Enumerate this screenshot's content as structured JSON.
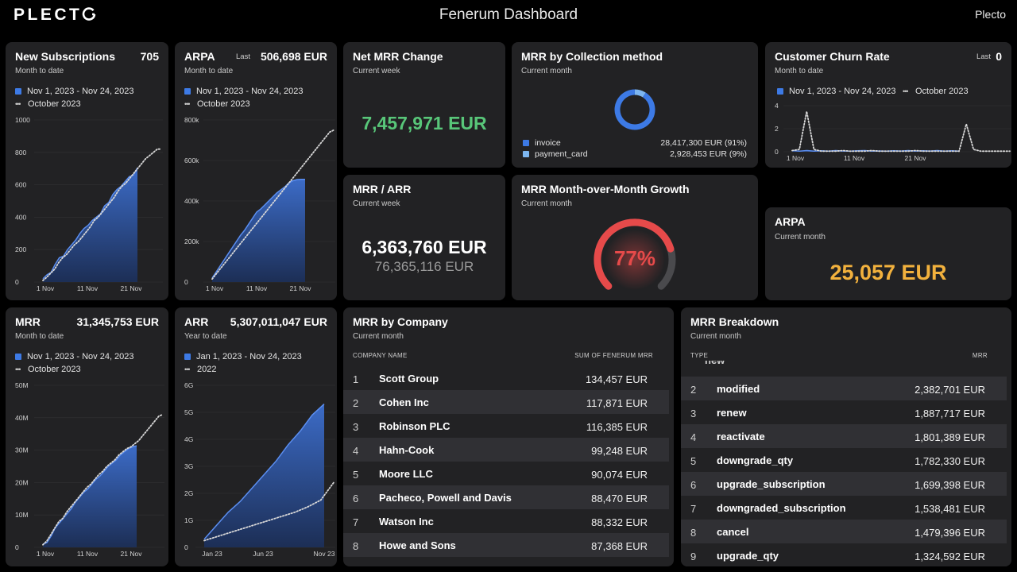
{
  "header": {
    "logo": "PLECTO",
    "title": "Fenerum Dashboard",
    "brand": "Plecto"
  },
  "colors": {
    "accent_blue": "#3d7ae5",
    "light_blue": "#7db6f0",
    "green": "#58c679",
    "orange": "#f2b13d",
    "red": "#e64a4a"
  },
  "new_subscriptions": {
    "title": "New Subscriptions",
    "value": "705",
    "subtitle": "Month to date",
    "legend_current": "Nov 1, 2023 - Nov 24, 2023",
    "legend_previous": "October 2023"
  },
  "arpa_mtd": {
    "title": "ARPA",
    "last_label": "Last",
    "value": "506,698 EUR",
    "subtitle": "Month to date",
    "legend_current": "Nov 1, 2023 - Nov 24, 2023",
    "legend_previous": "October 2023"
  },
  "net_mrr_change": {
    "title": "Net MRR Change",
    "subtitle": "Current week",
    "value": "7,457,971 EUR"
  },
  "mrr_collection": {
    "title": "MRR by Collection method",
    "subtitle": "Current month",
    "items": [
      {
        "label": "invoice",
        "amount": "28,417,300 EUR (91%)",
        "share": 0.91
      },
      {
        "label": "payment_card",
        "amount": "2,928,453 EUR (9%)",
        "share": 0.09
      }
    ]
  },
  "churn": {
    "title": "Customer Churn Rate",
    "last_label": "Last",
    "value": "0",
    "subtitle": "Month to date",
    "legend_current": "Nov 1, 2023 - Nov 24, 2023",
    "legend_previous": "October 2023"
  },
  "mrr_arr": {
    "title": "MRR / ARR",
    "subtitle": "Current week",
    "value": "6,363,760 EUR",
    "secondary": "76,365,116 EUR"
  },
  "mom_growth": {
    "title": "MRR Month-over-Month Growth",
    "subtitle": "Current month",
    "value": "77%",
    "percent": 77
  },
  "arpa_month": {
    "title": "ARPA",
    "subtitle": "Current month",
    "value": "25,057 EUR"
  },
  "mrr": {
    "title": "MRR",
    "value": "31,345,753 EUR",
    "subtitle": "Month to date",
    "legend_current": "Nov 1, 2023 - Nov 24, 2023",
    "legend_previous": "October 2023"
  },
  "arr": {
    "title": "ARR",
    "value": "5,307,011,047 EUR",
    "subtitle": "Year to date",
    "legend_current": "Jan 1, 2023 - Nov 24, 2023",
    "legend_previous": "2022"
  },
  "mrr_company": {
    "title": "MRR by Company",
    "subtitle": "Current month",
    "col_name": "COMPANY NAME",
    "col_value": "SUM OF FENERUM MRR",
    "rows": [
      {
        "rank": "1",
        "name": "Scott Group",
        "amount": "134,457 EUR"
      },
      {
        "rank": "2",
        "name": "Cohen Inc",
        "amount": "117,871 EUR"
      },
      {
        "rank": "3",
        "name": "Robinson PLC",
        "amount": "116,385 EUR"
      },
      {
        "rank": "4",
        "name": "Hahn-Cook",
        "amount": "99,248 EUR"
      },
      {
        "rank": "5",
        "name": "Moore LLC",
        "amount": "90,074 EUR"
      },
      {
        "rank": "6",
        "name": "Pacheco, Powell and Davis",
        "amount": "88,470 EUR"
      },
      {
        "rank": "7",
        "name": "Watson Inc",
        "amount": "88,332 EUR"
      },
      {
        "rank": "8",
        "name": "Howe and Sons",
        "amount": "87,368 EUR"
      }
    ]
  },
  "mrr_breakdown": {
    "title": "MRR Breakdown",
    "subtitle": "Current month",
    "col_type": "TYPE",
    "col_value": "MRR",
    "rows": [
      {
        "rank": "2",
        "name": "modified",
        "amount": "2,382,701 EUR"
      },
      {
        "rank": "3",
        "name": "renew",
        "amount": "1,887,717 EUR"
      },
      {
        "rank": "4",
        "name": "reactivate",
        "amount": "1,801,389 EUR"
      },
      {
        "rank": "5",
        "name": "downgrade_qty",
        "amount": "1,782,330 EUR"
      },
      {
        "rank": "6",
        "name": "upgrade_subscription",
        "amount": "1,699,398 EUR"
      },
      {
        "rank": "7",
        "name": "downgraded_subscription",
        "amount": "1,538,481 EUR"
      },
      {
        "rank": "8",
        "name": "cancel",
        "amount": "1,479,396 EUR"
      },
      {
        "rank": "9",
        "name": "upgrade_qty",
        "amount": "1,324,592 EUR"
      }
    ]
  },
  "chart_data": [
    {
      "id": "new_subs",
      "type": "area",
      "x_ticks": [
        "1 Nov",
        "11 Nov",
        "21 Nov"
      ],
      "y_ticks": [
        "0",
        "200",
        "400",
        "600",
        "800",
        "1000"
      ],
      "ylim": [
        0,
        1000
      ],
      "series": [
        {
          "name": "Nov 1, 2023 - Nov 24, 2023",
          "values": [
            20,
            45,
            60,
            110,
            150,
            160,
            200,
            230,
            260,
            300,
            330,
            350,
            380,
            400,
            420,
            470,
            490,
            540,
            570,
            590,
            620,
            650,
            660,
            705
          ]
        },
        {
          "name": "October 2023",
          "values": [
            10,
            30,
            55,
            80,
            120,
            150,
            170,
            200,
            230,
            250,
            280,
            310,
            340,
            380,
            400,
            430,
            460,
            490,
            520,
            560,
            590,
            610,
            640,
            670,
            700,
            730,
            760,
            780,
            800,
            820,
            820
          ]
        }
      ]
    },
    {
      "id": "arpa",
      "type": "area",
      "x_ticks": [
        "1 Nov",
        "11 Nov",
        "21 Nov"
      ],
      "y_ticks": [
        "0",
        "200k",
        "400k",
        "600k",
        "800k"
      ],
      "ylim": [
        0,
        800000
      ],
      "series": [
        {
          "name": "Nov 1, 2023 - Nov 24, 2023",
          "values": [
            20000,
            50000,
            80000,
            110000,
            140000,
            170000,
            200000,
            230000,
            255000,
            285000,
            315000,
            345000,
            360000,
            380000,
            400000,
            420000,
            440000,
            455000,
            470000,
            490000,
            500000,
            506000,
            506500,
            506698
          ]
        },
        {
          "name": "October 2023",
          "values": [
            15000,
            40000,
            65000,
            90000,
            115000,
            140000,
            165000,
            190000,
            215000,
            240000,
            265000,
            290000,
            315000,
            340000,
            365000,
            390000,
            415000,
            440000,
            465000,
            490000,
            515000,
            540000,
            565000,
            590000,
            615000,
            640000,
            665000,
            690000,
            715000,
            740000,
            750000
          ]
        }
      ]
    },
    {
      "id": "churn",
      "type": "area",
      "x_ticks": [
        "1 Nov",
        "11 Nov",
        "21 Nov"
      ],
      "y_ticks": [
        "0",
        "2",
        "4"
      ],
      "ylim": [
        0,
        4
      ],
      "series": [
        {
          "name": "Nov 1, 2023 - Nov 24, 2023",
          "values": [
            0.1,
            0.05,
            0.1,
            0.05,
            0.08,
            0.05,
            0.1,
            0.06,
            0.05,
            0.08,
            0.1,
            0.05,
            0.07,
            0.05,
            0.08,
            0.06,
            0.1,
            0.05,
            0.08,
            0.06,
            0.1,
            0.05,
            0.08,
            0.05
          ]
        },
        {
          "name": "October 2023",
          "values": [
            0.1,
            0.2,
            3.5,
            0.2,
            0.05,
            0.05,
            0.05,
            0.1,
            0.05,
            0.05,
            0.05,
            0.1,
            0.05,
            0.05,
            0.05,
            0.05,
            0.05,
            0.1,
            0.05,
            0.05,
            0.05,
            0.05,
            0.05,
            0.05,
            2.4,
            0.2,
            0.05,
            0.05,
            0.05,
            0.05,
            0.05
          ]
        }
      ]
    },
    {
      "id": "mrr",
      "type": "area",
      "x_ticks": [
        "1 Nov",
        "11 Nov",
        "21 Nov"
      ],
      "y_ticks": [
        "0",
        "10M",
        "20M",
        "30M",
        "40M",
        "50M"
      ],
      "ylim": [
        0,
        50000000
      ],
      "series": [
        {
          "name": "Nov 1, 2023 - Nov 24, 2023",
          "values": [
            1000000,
            1500000,
            3500000,
            6000000,
            7500000,
            9000000,
            10500000,
            12000000,
            14000000,
            15500000,
            17000000,
            18000000,
            19500000,
            21000000,
            22000000,
            23500000,
            25000000,
            26000000,
            27000000,
            28500000,
            29500000,
            30500000,
            31000000,
            31345753
          ]
        },
        {
          "name": "October 2023",
          "values": [
            800000,
            2000000,
            4000000,
            6000000,
            8000000,
            9000000,
            11000000,
            12500000,
            14000000,
            15500000,
            17000000,
            18500000,
            19500000,
            21000000,
            22500000,
            23500000,
            25000000,
            26000000,
            27000000,
            28500000,
            29500000,
            30500000,
            31000000,
            32000000,
            33000000,
            34500000,
            36000000,
            37500000,
            39000000,
            40500000,
            41000000
          ]
        }
      ]
    },
    {
      "id": "arr",
      "type": "area",
      "x_ticks": [
        "Jan 23",
        "Jun 23",
        "Nov 23"
      ],
      "y_ticks": [
        "0",
        "1G",
        "2G",
        "3G",
        "4G",
        "5G",
        "6G"
      ],
      "ylim": [
        0,
        6000000000
      ],
      "series": [
        {
          "name": "Jan 1, 2023 - Nov 24, 2023",
          "values": [
            300000000,
            800000000,
            1300000000,
            1700000000,
            2200000000,
            2700000000,
            3200000000,
            3800000000,
            4300000000,
            4900000000,
            5307011047
          ]
        },
        {
          "name": "2022",
          "values": [
            250000000,
            400000000,
            550000000,
            700000000,
            850000000,
            1000000000,
            1150000000,
            1300000000,
            1500000000,
            1750000000,
            2400000000
          ]
        }
      ]
    }
  ]
}
